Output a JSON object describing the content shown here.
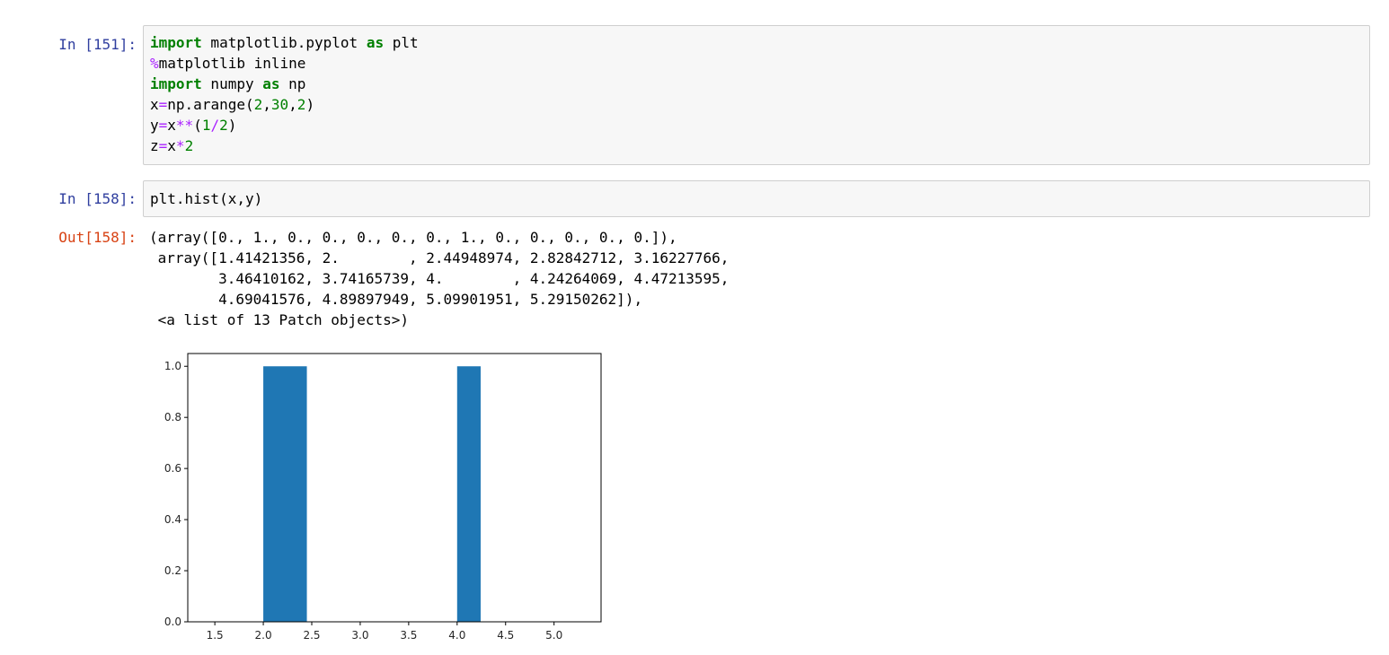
{
  "cells": [
    {
      "prompt": "In [151]:",
      "code_lines": [
        [
          {
            "t": "import",
            "c": "kw"
          },
          {
            "t": " matplotlib.pyplot ",
            "c": ""
          },
          {
            "t": "as",
            "c": "kw"
          },
          {
            "t": " plt",
            "c": ""
          }
        ],
        [
          {
            "t": "%",
            "c": "magic"
          },
          {
            "t": "matplotlib inline",
            "c": ""
          }
        ],
        [
          {
            "t": "import",
            "c": "kw"
          },
          {
            "t": " numpy ",
            "c": ""
          },
          {
            "t": "as",
            "c": "kw"
          },
          {
            "t": " np",
            "c": ""
          }
        ],
        [
          {
            "t": "x",
            "c": ""
          },
          {
            "t": "=",
            "c": "op"
          },
          {
            "t": "np.arange(",
            "c": ""
          },
          {
            "t": "2",
            "c": "num"
          },
          {
            "t": ",",
            "c": ""
          },
          {
            "t": "30",
            "c": "num"
          },
          {
            "t": ",",
            "c": ""
          },
          {
            "t": "2",
            "c": "num"
          },
          {
            "t": ")",
            "c": ""
          }
        ],
        [
          {
            "t": "y",
            "c": ""
          },
          {
            "t": "=",
            "c": "op"
          },
          {
            "t": "x",
            "c": ""
          },
          {
            "t": "**",
            "c": "op"
          },
          {
            "t": "(",
            "c": ""
          },
          {
            "t": "1",
            "c": "num"
          },
          {
            "t": "/",
            "c": "op"
          },
          {
            "t": "2",
            "c": "num"
          },
          {
            "t": ")",
            "c": ""
          }
        ],
        [
          {
            "t": "z",
            "c": ""
          },
          {
            "t": "=",
            "c": "op"
          },
          {
            "t": "x",
            "c": ""
          },
          {
            "t": "*",
            "c": "op"
          },
          {
            "t": "2",
            "c": "num"
          }
        ]
      ]
    },
    {
      "prompt": "In [158]:",
      "code_lines": [
        [
          {
            "t": "plt.hist(x,y)",
            "c": ""
          }
        ]
      ]
    }
  ],
  "output": {
    "prompt": "Out[158]:",
    "lines": [
      "(array([0., 1., 0., 0., 0., 0., 0., 1., 0., 0., 0., 0., 0.]),",
      " array([1.41421356, 2.        , 2.44948974, 2.82842712, 3.16227766,",
      "        3.46410162, 3.74165739, 4.        , 4.24264069, 4.47213595,",
      "        4.69041576, 4.89897949, 5.09901951, 5.29150262]),",
      " <a list of 13 Patch objects>)"
    ]
  },
  "chart_data": {
    "type": "bar",
    "bins": [
      {
        "x0": 1.41421356,
        "x1": 2.0,
        "count": 0
      },
      {
        "x0": 2.0,
        "x1": 2.44948974,
        "count": 1
      },
      {
        "x0": 2.44948974,
        "x1": 2.82842712,
        "count": 0
      },
      {
        "x0": 2.82842712,
        "x1": 3.16227766,
        "count": 0
      },
      {
        "x0": 3.16227766,
        "x1": 3.46410162,
        "count": 0
      },
      {
        "x0": 3.46410162,
        "x1": 3.74165739,
        "count": 0
      },
      {
        "x0": 3.74165739,
        "x1": 4.0,
        "count": 0
      },
      {
        "x0": 4.0,
        "x1": 4.24264069,
        "count": 1
      },
      {
        "x0": 4.24264069,
        "x1": 4.47213595,
        "count": 0
      },
      {
        "x0": 4.47213595,
        "x1": 4.69041576,
        "count": 0
      },
      {
        "x0": 4.69041576,
        "x1": 4.89897949,
        "count": 0
      },
      {
        "x0": 4.89897949,
        "x1": 5.09901951,
        "count": 0
      },
      {
        "x0": 5.09901951,
        "x1": 5.29150262,
        "count": 0
      }
    ],
    "xticks": [
      1.5,
      2.0,
      2.5,
      3.0,
      3.5,
      4.0,
      4.5,
      5.0
    ],
    "xtick_labels": [
      "1.5",
      "2.0",
      "2.5",
      "3.0",
      "3.5",
      "4.0",
      "4.5",
      "5.0"
    ],
    "yticks": [
      0.0,
      0.2,
      0.4,
      0.6,
      0.8,
      1.0
    ],
    "ytick_labels": [
      "0.0",
      "0.2",
      "0.4",
      "0.6",
      "0.8",
      "1.0"
    ],
    "xlim": [
      1.2207,
      5.4851
    ],
    "ylim": [
      0,
      1.05
    ],
    "bar_color": "#1f77b4",
    "grid": false
  }
}
